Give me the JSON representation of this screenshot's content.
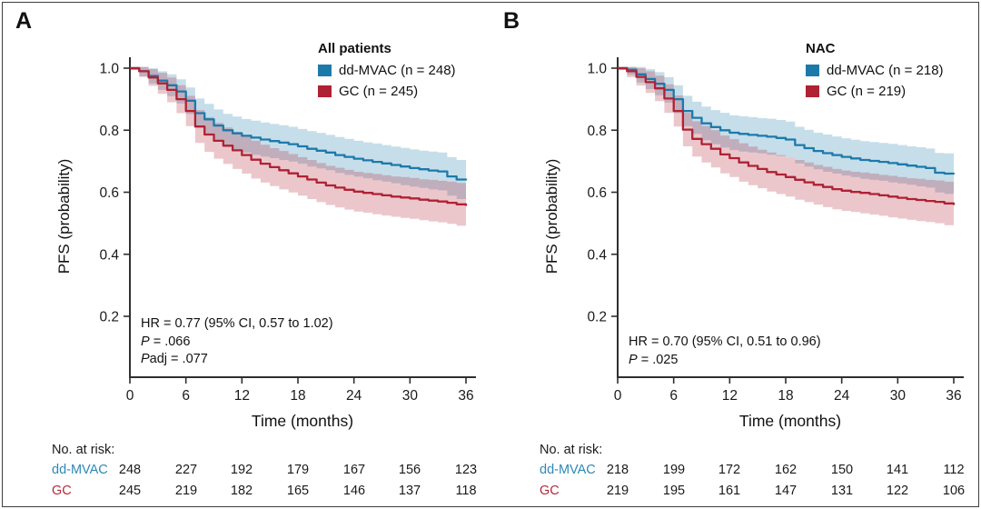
{
  "colors": {
    "ddmvac": "#1c7aab",
    "gc": "#b02133",
    "axis": "#2f2f2f",
    "text": "#1a1a1a"
  },
  "panels": [
    {
      "label": "A",
      "legend": {
        "title": "All patients",
        "items": [
          {
            "label": "dd-MVAC (n = 248)",
            "color": "#1c7aab"
          },
          {
            "label": "GC (n = 245)",
            "color": "#b02133"
          }
        ]
      },
      "annotation": {
        "hr": "HR = 0.77 (95% CI, 0.57 to 1.02)",
        "p_italic": "P",
        "p_rest": " = .066",
        "padj_italic": "P",
        "padj_rest": "adj = .077"
      },
      "risk_table": {
        "title": "No. at risk:",
        "rows": [
          {
            "label": "dd-MVAC",
            "values": [
              248,
              227,
              192,
              179,
              167,
              156,
              123
            ]
          },
          {
            "label": "GC",
            "values": [
              245,
              219,
              182,
              165,
              146,
              137,
              118
            ]
          }
        ]
      }
    },
    {
      "label": "B",
      "legend": {
        "title": "NAC",
        "items": [
          {
            "label": "dd-MVAC (n = 218)",
            "color": "#1c7aab"
          },
          {
            "label": "GC (n = 219)",
            "color": "#b02133"
          }
        ]
      },
      "annotation": {
        "hr": "HR = 0.70 (95% CI, 0.51 to 0.96)",
        "p_italic": "P",
        "p_rest": " = .025"
      },
      "risk_table": {
        "title": "No. at risk:",
        "rows": [
          {
            "label": "dd-MVAC",
            "values": [
              218,
              199,
              172,
              162,
              150,
              141,
              112
            ]
          },
          {
            "label": "GC",
            "values": [
              219,
              195,
              161,
              147,
              131,
              122,
              106
            ]
          }
        ]
      }
    }
  ],
  "chart_data": [
    {
      "type": "line",
      "subtype": "kaplan-meier-step",
      "title": "All patients",
      "xlabel": "Time (months)",
      "ylabel": "PFS (probability)",
      "xlim": [
        0,
        37
      ],
      "ylim": [
        0,
        1.02
      ],
      "x_ticks": [
        0,
        6,
        12,
        18,
        24,
        30,
        36
      ],
      "y_ticks": [
        1.0,
        0.8,
        0.6,
        0.4,
        0.2
      ],
      "y_tick_labels": [
        "1.0",
        "0.8",
        "0.6",
        "0.4",
        "0.2"
      ],
      "legend_position": "top-right",
      "grid": false,
      "series": [
        {
          "name": "dd-MVAC (n = 248)",
          "color": "#1c7aab",
          "x": [
            0,
            1,
            2,
            3,
            4,
            5,
            6,
            7,
            8,
            9,
            10,
            11,
            12,
            13,
            14,
            15,
            16,
            17,
            18,
            19,
            20,
            21,
            22,
            23,
            24,
            25,
            26,
            27,
            28,
            29,
            30,
            31,
            32,
            33,
            34,
            35,
            36
          ],
          "y": [
            1,
            0.99,
            0.975,
            0.96,
            0.945,
            0.925,
            0.895,
            0.855,
            0.835,
            0.815,
            0.8,
            0.79,
            0.782,
            0.776,
            0.77,
            0.765,
            0.76,
            0.755,
            0.748,
            0.74,
            0.734,
            0.728,
            0.72,
            0.714,
            0.708,
            0.703,
            0.698,
            0.693,
            0.688,
            0.683,
            0.678,
            0.674,
            0.67,
            0.667,
            0.651,
            0.641,
            0.638
          ],
          "ci_hw": [
            0.006,
            0.016,
            0.024,
            0.03,
            0.035,
            0.039,
            0.043,
            0.047,
            0.05,
            0.052,
            0.053,
            0.054,
            0.054,
            0.055,
            0.055,
            0.055,
            0.056,
            0.056,
            0.056,
            0.057,
            0.057,
            0.057,
            0.058,
            0.058,
            0.058,
            0.058,
            0.059,
            0.059,
            0.059,
            0.06,
            0.06,
            0.06,
            0.061,
            0.061,
            0.062,
            0.063,
            0.064
          ]
        },
        {
          "name": "GC (n = 245)",
          "color": "#b02133",
          "x": [
            0,
            1,
            2,
            3,
            4,
            5,
            6,
            7,
            8,
            9,
            10,
            11,
            12,
            13,
            14,
            15,
            16,
            17,
            18,
            19,
            20,
            21,
            22,
            23,
            24,
            25,
            26,
            27,
            28,
            29,
            30,
            31,
            32,
            33,
            34,
            35,
            36
          ],
          "y": [
            1,
            0.99,
            0.97,
            0.951,
            0.93,
            0.9,
            0.862,
            0.812,
            0.786,
            0.766,
            0.75,
            0.735,
            0.72,
            0.705,
            0.692,
            0.681,
            0.671,
            0.661,
            0.651,
            0.641,
            0.631,
            0.622,
            0.615,
            0.608,
            0.602,
            0.598,
            0.594,
            0.59,
            0.586,
            0.583,
            0.58,
            0.576,
            0.573,
            0.57,
            0.566,
            0.561,
            0.556
          ],
          "ci_hw": [
            0.006,
            0.018,
            0.027,
            0.034,
            0.04,
            0.045,
            0.049,
            0.053,
            0.056,
            0.058,
            0.059,
            0.06,
            0.06,
            0.061,
            0.061,
            0.061,
            0.062,
            0.062,
            0.062,
            0.063,
            0.063,
            0.063,
            0.064,
            0.064,
            0.064,
            0.064,
            0.065,
            0.065,
            0.065,
            0.066,
            0.066,
            0.066,
            0.067,
            0.067,
            0.068,
            0.069,
            0.07
          ]
        }
      ],
      "annotations": [
        "HR = 0.77 (95% CI, 0.57 to 1.02)",
        "P = .066",
        "Padj = .077"
      ]
    },
    {
      "type": "line",
      "subtype": "kaplan-meier-step",
      "title": "NAC",
      "xlabel": "Time (months)",
      "ylabel": "PFS (probability)",
      "xlim": [
        0,
        37
      ],
      "ylim": [
        0,
        1.02
      ],
      "x_ticks": [
        0,
        6,
        12,
        18,
        24,
        30,
        36
      ],
      "y_ticks": [
        1.0,
        0.8,
        0.6,
        0.4,
        0.2
      ],
      "y_tick_labels": [
        "1.0",
        "0.8",
        "0.6",
        "0.4",
        "0.2"
      ],
      "legend_position": "top-right",
      "grid": false,
      "series": [
        {
          "name": "dd-MVAC (n = 218)",
          "color": "#1c7aab",
          "x": [
            0,
            1,
            2,
            3,
            4,
            5,
            6,
            7,
            8,
            9,
            10,
            11,
            12,
            13,
            14,
            15,
            16,
            17,
            18,
            19,
            20,
            21,
            22,
            23,
            24,
            25,
            26,
            27,
            28,
            29,
            30,
            31,
            32,
            33,
            34,
            35,
            36
          ],
          "y": [
            1,
            0.995,
            0.98,
            0.965,
            0.95,
            0.93,
            0.9,
            0.862,
            0.84,
            0.822,
            0.81,
            0.8,
            0.792,
            0.788,
            0.785,
            0.782,
            0.779,
            0.775,
            0.77,
            0.752,
            0.742,
            0.733,
            0.726,
            0.72,
            0.714,
            0.709,
            0.704,
            0.701,
            0.698,
            0.694,
            0.69,
            0.686,
            0.682,
            0.678,
            0.663,
            0.66,
            0.658
          ],
          "ci_hw": [
            0.006,
            0.017,
            0.026,
            0.032,
            0.037,
            0.041,
            0.045,
            0.049,
            0.052,
            0.054,
            0.055,
            0.056,
            0.056,
            0.057,
            0.057,
            0.057,
            0.058,
            0.058,
            0.058,
            0.059,
            0.059,
            0.059,
            0.06,
            0.06,
            0.06,
            0.06,
            0.061,
            0.061,
            0.061,
            0.062,
            0.062,
            0.062,
            0.063,
            0.063,
            0.064,
            0.065,
            0.066
          ]
        },
        {
          "name": "GC (n = 219)",
          "color": "#b02133",
          "x": [
            0,
            1,
            2,
            3,
            4,
            5,
            6,
            7,
            8,
            9,
            10,
            11,
            12,
            13,
            14,
            15,
            16,
            17,
            18,
            19,
            20,
            21,
            22,
            23,
            24,
            25,
            26,
            27,
            28,
            29,
            30,
            31,
            32,
            33,
            34,
            35,
            36
          ],
          "y": [
            1,
            0.99,
            0.972,
            0.955,
            0.935,
            0.902,
            0.862,
            0.802,
            0.772,
            0.755,
            0.74,
            0.722,
            0.71,
            0.696,
            0.685,
            0.675,
            0.665,
            0.657,
            0.649,
            0.64,
            0.632,
            0.624,
            0.617,
            0.61,
            0.605,
            0.601,
            0.598,
            0.594,
            0.59,
            0.586,
            0.582,
            0.578,
            0.575,
            0.572,
            0.569,
            0.564,
            0.559
          ],
          "ci_hw": [
            0.006,
            0.019,
            0.028,
            0.035,
            0.041,
            0.046,
            0.05,
            0.054,
            0.057,
            0.059,
            0.06,
            0.061,
            0.061,
            0.062,
            0.062,
            0.062,
            0.063,
            0.063,
            0.063,
            0.064,
            0.064,
            0.064,
            0.065,
            0.065,
            0.065,
            0.065,
            0.066,
            0.066,
            0.066,
            0.067,
            0.067,
            0.067,
            0.068,
            0.068,
            0.069,
            0.07,
            0.071
          ]
        }
      ],
      "annotations": [
        "HR = 0.70 (95% CI, 0.51 to 0.96)",
        "P = .025"
      ]
    }
  ]
}
